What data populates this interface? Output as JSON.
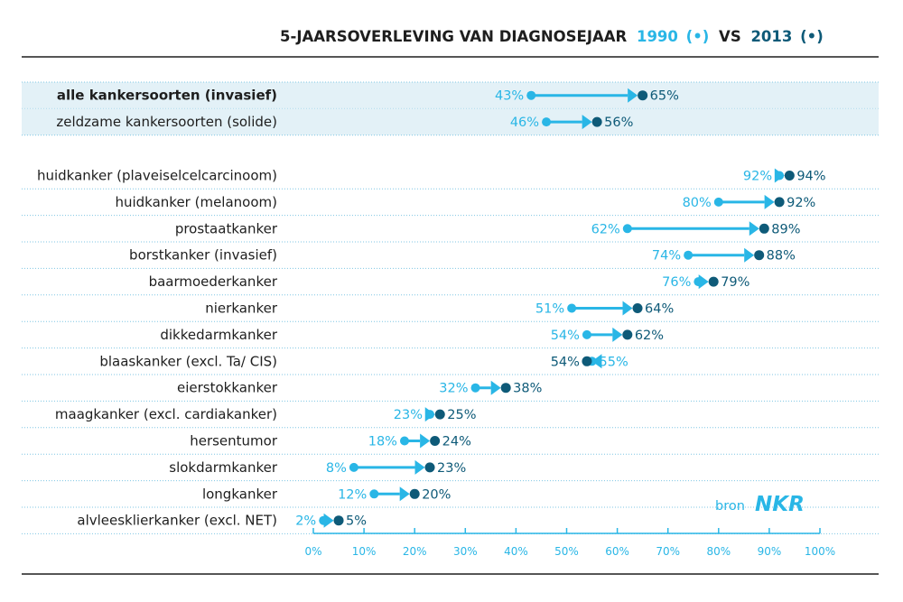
{
  "title": {
    "main": "5-JAARSOVERLEVING VAN DIAGNOSEJAAR",
    "year1": "1990",
    "dot1": "(•)",
    "vs": "VS",
    "year2": "2013",
    "dot2": "(•)"
  },
  "source": {
    "prefix": "bron",
    "brand": "NKR"
  },
  "colors": {
    "y1990": "#29b6e6",
    "y2013": "#0e5a78",
    "highlight_row": "#e3f1f7",
    "dotted_line": "#7fc6e3",
    "rule": "#1e1e1e",
    "axis": "#29b6e6",
    "label": "#1e1e1e"
  },
  "chart_data": {
    "type": "dumbbell",
    "x_unit": "%",
    "xlim": [
      0,
      100
    ],
    "x_ticks": [
      "0%",
      "10%",
      "20%",
      "30%",
      "40%",
      "50%",
      "60%",
      "70%",
      "80%",
      "90%",
      "100%"
    ],
    "series": [
      {
        "name": "1990",
        "key": "v1990"
      },
      {
        "name": "2013",
        "key": "v2013"
      }
    ],
    "groups": [
      [
        {
          "label": "alle kankersoorten (invasief)",
          "v1990": 43,
          "v2013": 65,
          "bold": true,
          "highlight": true
        },
        {
          "label": "zeldzame kankersoorten (solide)",
          "v1990": 46,
          "v2013": 56,
          "highlight": true
        }
      ],
      [
        {
          "label": "huidkanker (plaveiselcelcarcinoom)",
          "v1990": 92,
          "v2013": 94
        },
        {
          "label": "huidkanker (melanoom)",
          "v1990": 80,
          "v2013": 92
        },
        {
          "label": "prostaatkanker",
          "v1990": 62,
          "v2013": 89
        },
        {
          "label": "borstkanker (invasief)",
          "v1990": 74,
          "v2013": 88
        },
        {
          "label": "baarmoederkanker",
          "v1990": 76,
          "v2013": 79
        },
        {
          "label": "nierkanker",
          "v1990": 51,
          "v2013": 64
        },
        {
          "label": "dikkedarmkanker",
          "v1990": 54,
          "v2013": 62
        },
        {
          "label": "blaaskanker (excl. Ta/ CIS)",
          "v1990": 55,
          "v2013": 54
        },
        {
          "label": "eierstokkanker",
          "v1990": 32,
          "v2013": 38
        },
        {
          "label": "maagkanker (excl. cardiakanker)",
          "v1990": 23,
          "v2013": 25
        },
        {
          "label": "hersentumor",
          "v1990": 18,
          "v2013": 24
        },
        {
          "label": "slokdarmkanker",
          "v1990": 8,
          "v2013": 23
        },
        {
          "label": "longkanker",
          "v1990": 12,
          "v2013": 20
        },
        {
          "label": "alvleesklierkanker (excl. NET)",
          "v1990": 2,
          "v2013": 5
        }
      ]
    ]
  }
}
